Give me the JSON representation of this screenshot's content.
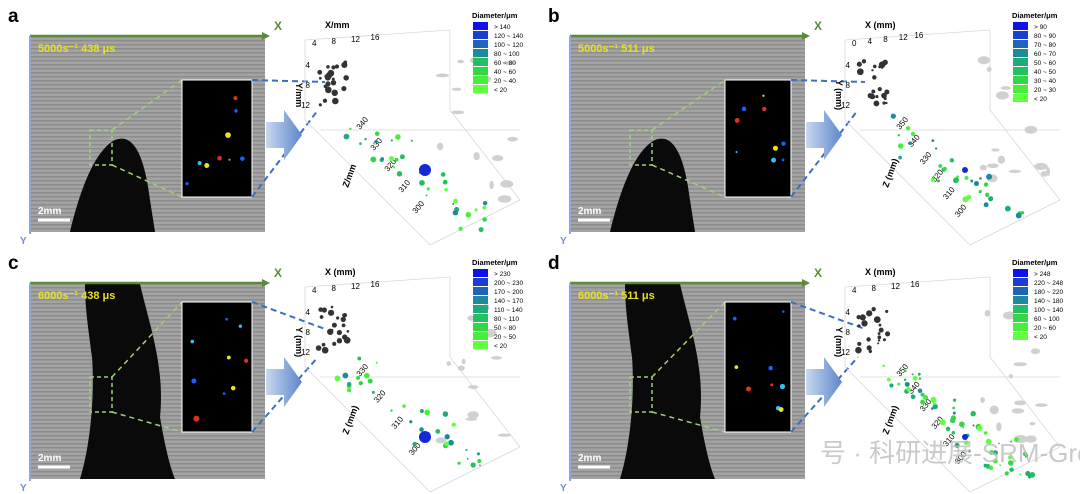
{
  "panels": [
    {
      "letter": "a",
      "condition": "5000s⁻¹  438 μs",
      "scale": "2mm",
      "axis_x": "X",
      "axis_y": "Y",
      "plot": {
        "x_label": "X/mm",
        "y_label": "Y/mm",
        "z_label": "Z/mm",
        "x_ticks": [
          "4",
          "8",
          "12",
          "16"
        ],
        "y_ticks": [
          "4",
          "8",
          "12"
        ],
        "z_ticks": [
          "340",
          "330",
          "320",
          "310",
          "300"
        ],
        "legend_title": "Diameter/μm",
        "legend": [
          "> 140",
          "120 ~ 140",
          "100 ~ 120",
          "80 ~ 100",
          "60 ~ 80",
          "40 ~ 60",
          "20 ~ 40",
          "< 20"
        ]
      }
    },
    {
      "letter": "b",
      "condition": "5000s⁻¹  511 μs",
      "scale": "2mm",
      "axis_x": "X",
      "axis_y": "Y",
      "plot": {
        "x_label": "X (mm)",
        "y_label": "Y (mm)",
        "z_label": "Z (mm)",
        "x_ticks": [
          "0",
          "4",
          "8",
          "12",
          "16"
        ],
        "y_ticks": [
          "4",
          "8",
          "12"
        ],
        "z_ticks": [
          "350",
          "340",
          "330",
          "320",
          "310",
          "300"
        ],
        "legend_title": "Diameter/μm",
        "legend": [
          "> 90",
          "80 ~ 90",
          "70 ~ 80",
          "60 ~ 70",
          "50 ~ 60",
          "40 ~ 50",
          "30 ~ 40",
          "20 ~ 30",
          "< 20"
        ]
      }
    },
    {
      "letter": "c",
      "condition": "6000s⁻¹  438 μs",
      "scale": "2mm",
      "axis_x": "X",
      "axis_y": "Y",
      "plot": {
        "x_label": "X (mm)",
        "y_label": "Y (mm)",
        "z_label": "Z (mm)",
        "x_ticks": [
          "4",
          "8",
          "12",
          "16"
        ],
        "y_ticks": [
          "4",
          "8",
          "12"
        ],
        "z_ticks": [
          "330",
          "320",
          "310",
          "300"
        ],
        "legend_title": "Diameter/μm",
        "legend": [
          "> 230",
          "200 ~ 230",
          "170 ~ 200",
          "140 ~ 170",
          "110 ~ 140",
          "80 ~ 110",
          "50 ~ 80",
          "20 ~ 50",
          "< 20"
        ]
      }
    },
    {
      "letter": "d",
      "condition": "6000s⁻¹  511 μs",
      "scale": "2mm",
      "axis_x": "X",
      "axis_y": "Y",
      "plot": {
        "x_label": "X (mm)",
        "y_label": "Y (mm)",
        "z_label": "Z (mm)",
        "x_ticks": [
          "4",
          "8",
          "12",
          "16"
        ],
        "y_ticks": [
          "4",
          "8",
          "12"
        ],
        "z_ticks": [
          "350",
          "340",
          "330",
          "320",
          "310",
          "300"
        ],
        "legend_title": "Diameter/μm",
        "legend": [
          "> 248",
          "220 ~ 248",
          "180 ~ 220",
          "140 ~ 180",
          "100 ~ 140",
          "60 ~ 100",
          "20 ~ 60",
          "< 20"
        ]
      }
    }
  ],
  "watermark": "号 · 科研进展-SRM-Group"
}
